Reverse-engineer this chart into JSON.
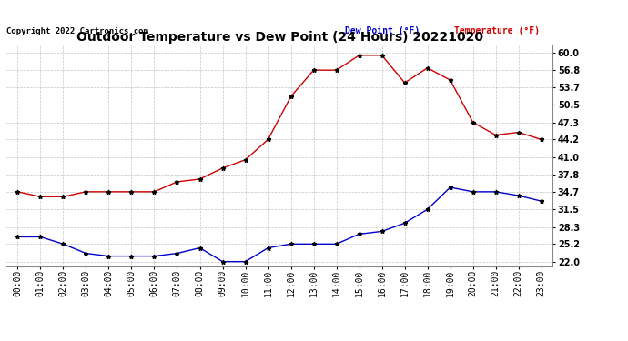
{
  "title": "Outdoor Temperature vs Dew Point (24 Hours) 20221020",
  "copyright": "Copyright 2022 Cartronics.com",
  "legend_dew": "Dew Point (°F)",
  "legend_temp": "Temperature (°F)",
  "x_labels": [
    "00:00",
    "01:00",
    "02:00",
    "03:00",
    "04:00",
    "05:00",
    "06:00",
    "07:00",
    "08:00",
    "09:00",
    "10:00",
    "11:00",
    "12:00",
    "13:00",
    "14:00",
    "15:00",
    "16:00",
    "17:00",
    "18:00",
    "19:00",
    "20:00",
    "21:00",
    "22:00",
    "23:00"
  ],
  "temperature": [
    34.7,
    33.8,
    33.8,
    34.7,
    34.7,
    34.7,
    34.7,
    36.5,
    37.0,
    39.0,
    40.5,
    44.2,
    52.0,
    56.8,
    56.8,
    59.5,
    59.5,
    54.5,
    57.2,
    55.0,
    47.3,
    45.0,
    45.5,
    44.2
  ],
  "dew_point": [
    26.5,
    26.5,
    25.2,
    23.5,
    23.0,
    23.0,
    23.0,
    23.5,
    24.5,
    22.0,
    22.0,
    24.5,
    25.2,
    25.2,
    25.2,
    27.0,
    27.5,
    29.0,
    31.5,
    35.5,
    34.7,
    34.7,
    34.0,
    33.0
  ],
  "temp_color": "#cc0000",
  "dew_color": "#0000cc",
  "marker_color": "#000000",
  "bg_color": "#ffffff",
  "grid_color": "#aaaaaa",
  "y_ticks": [
    22.0,
    25.2,
    28.3,
    31.5,
    34.7,
    37.8,
    41.0,
    44.2,
    47.3,
    50.5,
    53.7,
    56.8,
    60.0
  ],
  "ylim": [
    21.2,
    61.5
  ],
  "xlim": [
    -0.5,
    23.5
  ],
  "title_fontsize": 10,
  "axis_fontsize": 7,
  "copyright_fontsize": 6.5
}
